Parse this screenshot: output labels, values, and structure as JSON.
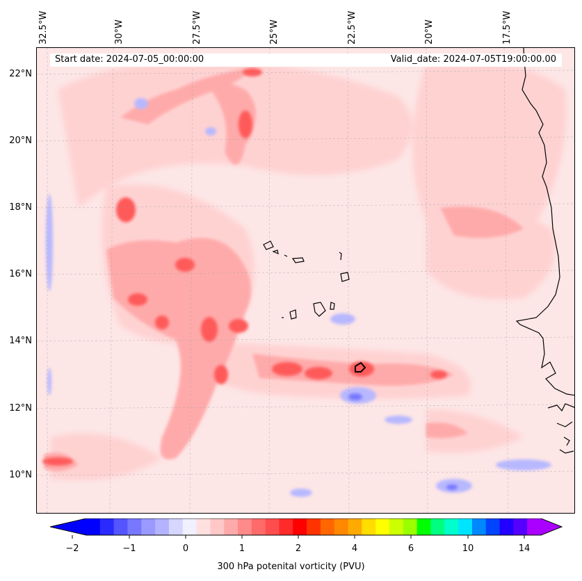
{
  "header": {
    "start_date": "Start date: 2024-07-05_00:00:00",
    "valid_date": "Valid_date: 2024-07-05T19:00:00.00"
  },
  "longitude_labels": [
    "32.5°W",
    "30°W",
    "27.5°W",
    "25°W",
    "22.5°W",
    "20°W",
    "17.5°W"
  ],
  "latitude_labels": [
    "22°N",
    "20°N",
    "18°N",
    "16°N",
    "14°N",
    "12°N",
    "10°N"
  ],
  "colorbar": {
    "title": "300 hPa potenital vorticity (PVU)",
    "tick_labels": [
      "−2",
      "−1",
      "0",
      "1",
      "2",
      "4",
      "6",
      "10",
      "14"
    ],
    "colors": [
      "#0000ff",
      "#2a2aff",
      "#5555ff",
      "#7777ff",
      "#9999ff",
      "#b3b3ff",
      "#d6d6ff",
      "#f0f0ff",
      "#ffe0e0",
      "#ffc8c8",
      "#ffaaaa",
      "#ff8a8a",
      "#ff6a6a",
      "#ff4d4d",
      "#ff2a2a",
      "#ff0000",
      "#ff3300",
      "#ff6600",
      "#ff8800",
      "#ffaa00",
      "#ffdd00",
      "#ffff00",
      "#ccff00",
      "#99ff00",
      "#00ff00",
      "#00ff80",
      "#00ffcc",
      "#00e5ff",
      "#0088ff",
      "#0044ff",
      "#2200ff",
      "#5500ff",
      "#aa00ff"
    ]
  },
  "map_features": {
    "coastline": "West Africa (Senegal / Mauritania)",
    "islands": "Cape Verde"
  }
}
